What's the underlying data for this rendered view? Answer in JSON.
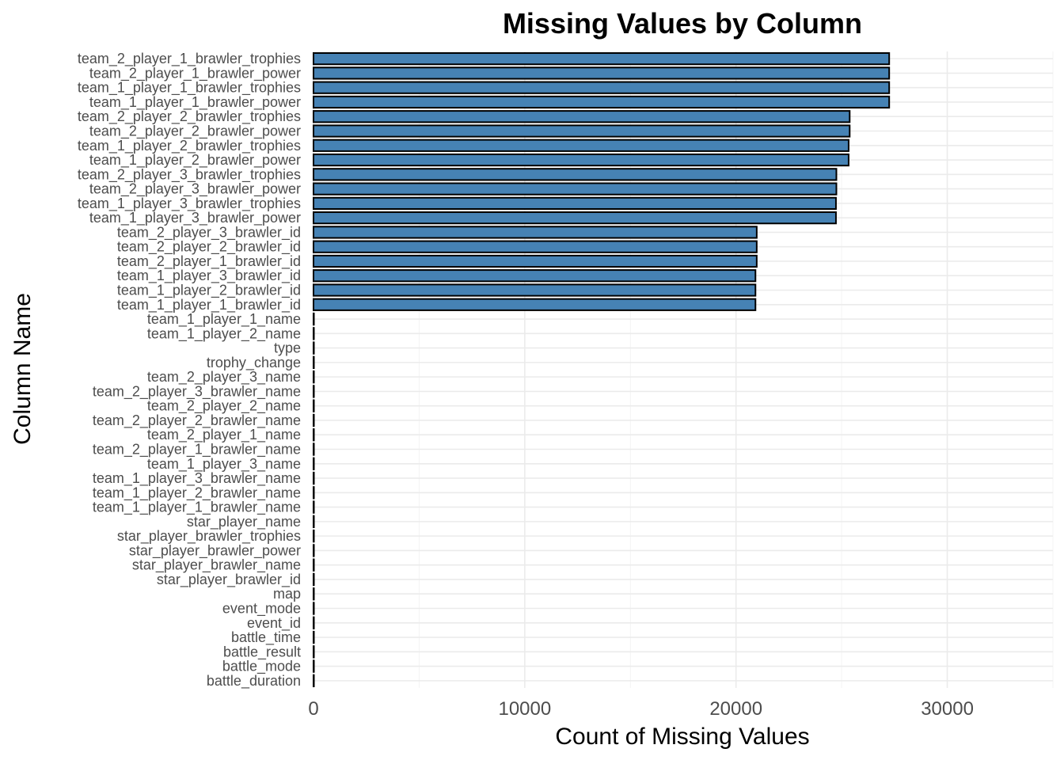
{
  "chart_data": {
    "type": "bar",
    "orientation": "horizontal",
    "title": "Missing Values by Column",
    "xlabel": "Count of Missing Values",
    "ylabel": "Column Name",
    "xlim": [
      0,
      35000
    ],
    "x_ticks": [
      0,
      10000,
      20000,
      30000
    ],
    "x_tick_labels": [
      "0",
      "10000",
      "20000",
      "30000"
    ],
    "grid": true,
    "legend": "none",
    "bar_color": "#4682b4",
    "bar_outline": "#000000",
    "categories": [
      "team_2_player_1_brawler_trophies",
      "team_2_player_1_brawler_power",
      "team_1_player_1_brawler_trophies",
      "team_1_player_1_brawler_power",
      "team_2_player_2_brawler_trophies",
      "team_2_player_2_brawler_power",
      "team_1_player_2_brawler_trophies",
      "team_1_player_2_brawler_power",
      "team_2_player_3_brawler_trophies",
      "team_2_player_3_brawler_power",
      "team_1_player_3_brawler_trophies",
      "team_1_player_3_brawler_power",
      "team_2_player_3_brawler_id",
      "team_2_player_2_brawler_id",
      "team_2_player_1_brawler_id",
      "team_1_player_3_brawler_id",
      "team_1_player_2_brawler_id",
      "team_1_player_1_brawler_id",
      "team_1_player_1_name",
      "team_1_player_2_name",
      "type",
      "trophy_change",
      "team_2_player_3_name",
      "team_2_player_3_brawler_name",
      "team_2_player_2_name",
      "team_2_player_2_brawler_name",
      "team_2_player_1_name",
      "team_2_player_1_brawler_name",
      "team_1_player_3_name",
      "team_1_player_3_brawler_name",
      "team_1_player_2_brawler_name",
      "team_1_player_1_brawler_name",
      "star_player_name",
      "star_player_brawler_trophies",
      "star_player_brawler_power",
      "star_player_brawler_name",
      "star_player_brawler_id",
      "map",
      "event_mode",
      "event_id",
      "battle_time",
      "battle_result",
      "battle_mode",
      "battle_duration"
    ],
    "values": [
      27250,
      27250,
      27250,
      27250,
      25380,
      25380,
      25330,
      25330,
      24750,
      24750,
      24730,
      24730,
      20980,
      20980,
      20980,
      20920,
      20920,
      20920,
      1,
      1,
      1,
      1,
      1,
      1,
      1,
      1,
      1,
      1,
      1,
      1,
      1,
      1,
      1,
      1,
      1,
      1,
      1,
      1,
      1,
      1,
      1,
      1,
      1,
      1
    ]
  }
}
